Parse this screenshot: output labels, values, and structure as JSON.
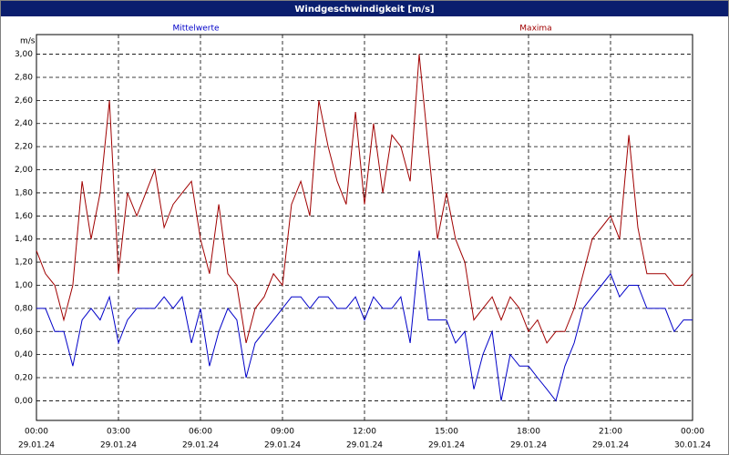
{
  "chart_data": {
    "type": "line",
    "title": "Windgeschwindigkeit [m/s]",
    "y_unit": "m/s",
    "x": [
      0,
      0.33,
      0.67,
      1,
      1.33,
      1.67,
      2,
      2.33,
      2.67,
      3,
      3.33,
      3.67,
      4,
      4.33,
      4.67,
      5,
      5.33,
      5.67,
      6,
      6.33,
      6.67,
      7,
      7.33,
      7.67,
      8,
      8.33,
      8.67,
      9,
      9.33,
      9.67,
      10,
      10.33,
      10.67,
      11,
      11.33,
      11.67,
      12,
      12.33,
      12.67,
      13,
      13.33,
      13.67,
      14,
      14.33,
      14.67,
      15,
      15.33,
      15.67,
      16,
      16.33,
      16.67,
      17,
      17.33,
      17.67,
      18,
      18.33,
      18.67,
      19,
      19.33,
      19.67,
      20,
      20.33,
      20.67,
      21,
      21.33,
      21.67,
      22,
      22.33,
      22.67,
      23,
      23.33,
      23.67,
      24
    ],
    "series": [
      {
        "name": "Mittelwerte",
        "color": "#0000c8",
        "values": [
          0.8,
          0.8,
          0.6,
          0.6,
          0.3,
          0.7,
          0.8,
          0.7,
          0.9,
          0.5,
          0.7,
          0.8,
          0.8,
          0.8,
          0.9,
          0.8,
          0.9,
          0.5,
          0.8,
          0.3,
          0.6,
          0.8,
          0.7,
          0.2,
          0.5,
          0.6,
          0.7,
          0.8,
          0.9,
          0.9,
          0.8,
          0.9,
          0.9,
          0.8,
          0.8,
          0.9,
          0.7,
          0.9,
          0.8,
          0.8,
          0.9,
          0.5,
          1.3,
          0.7,
          0.7,
          0.7,
          0.5,
          0.6,
          0.1,
          0.4,
          0.6,
          0.0,
          0.4,
          0.3,
          0.3,
          0.2,
          0.1,
          0.0,
          0.3,
          0.5,
          0.8,
          0.9,
          1.0,
          1.1,
          0.9,
          1.0,
          1.0,
          0.8,
          0.8,
          0.8,
          0.6,
          0.7,
          0.7
        ]
      },
      {
        "name": "Maxima",
        "color": "#a00000",
        "values": [
          1.3,
          1.1,
          1.0,
          0.7,
          1.0,
          1.9,
          1.4,
          1.8,
          2.6,
          1.1,
          1.8,
          1.6,
          1.8,
          2.0,
          1.5,
          1.7,
          1.8,
          1.9,
          1.4,
          1.1,
          1.7,
          1.1,
          1.0,
          0.5,
          0.8,
          0.9,
          1.1,
          1.0,
          1.7,
          1.9,
          1.6,
          2.6,
          2.2,
          1.9,
          1.7,
          2.5,
          1.7,
          2.4,
          1.8,
          2.3,
          2.2,
          1.9,
          3.0,
          2.2,
          1.4,
          1.8,
          1.4,
          1.2,
          0.7,
          0.8,
          0.9,
          0.7,
          0.9,
          0.8,
          0.6,
          0.7,
          0.5,
          0.6,
          0.6,
          0.8,
          1.1,
          1.4,
          1.5,
          1.6,
          1.4,
          2.3,
          1.5,
          1.1,
          1.1,
          1.1,
          1.0,
          1.0,
          1.1
        ]
      }
    ],
    "xlim": [
      0,
      24
    ],
    "xticks": [
      {
        "value": 0,
        "label": "00:00",
        "date": "29.01.24"
      },
      {
        "value": 3,
        "label": "03:00",
        "date": "29.01.24"
      },
      {
        "value": 6,
        "label": "06:00",
        "date": "29.01.24"
      },
      {
        "value": 9,
        "label": "09:00",
        "date": "29.01.24"
      },
      {
        "value": 12,
        "label": "12:00",
        "date": "29.01.24"
      },
      {
        "value": 15,
        "label": "15:00",
        "date": "29.01.24"
      },
      {
        "value": 18,
        "label": "18:00",
        "date": "29.01.24"
      },
      {
        "value": 21,
        "label": "21:00",
        "date": "29.01.24"
      },
      {
        "value": 24,
        "label": "00:00",
        "date": "30.01.24"
      }
    ],
    "ylim": [
      -0.17,
      3.17
    ],
    "yticks": [
      {
        "value": 0,
        "label": "0,00"
      },
      {
        "value": 0.2,
        "label": "0,20"
      },
      {
        "value": 0.4,
        "label": "0,40"
      },
      {
        "value": 0.6,
        "label": "0,60"
      },
      {
        "value": 0.8,
        "label": "0,80"
      },
      {
        "value": 1,
        "label": "1,00"
      },
      {
        "value": 1.2,
        "label": "1,20"
      },
      {
        "value": 1.4,
        "label": "1,40"
      },
      {
        "value": 1.6,
        "label": "1,60"
      },
      {
        "value": 1.8,
        "label": "1,80"
      },
      {
        "value": 2,
        "label": "2,00"
      },
      {
        "value": 2.2,
        "label": "2,20"
      },
      {
        "value": 2.4,
        "label": "2,40"
      },
      {
        "value": 2.6,
        "label": "2,60"
      },
      {
        "value": 2.8,
        "label": "2,80"
      },
      {
        "value": 3,
        "label": "3,00"
      }
    ],
    "grid": true
  }
}
